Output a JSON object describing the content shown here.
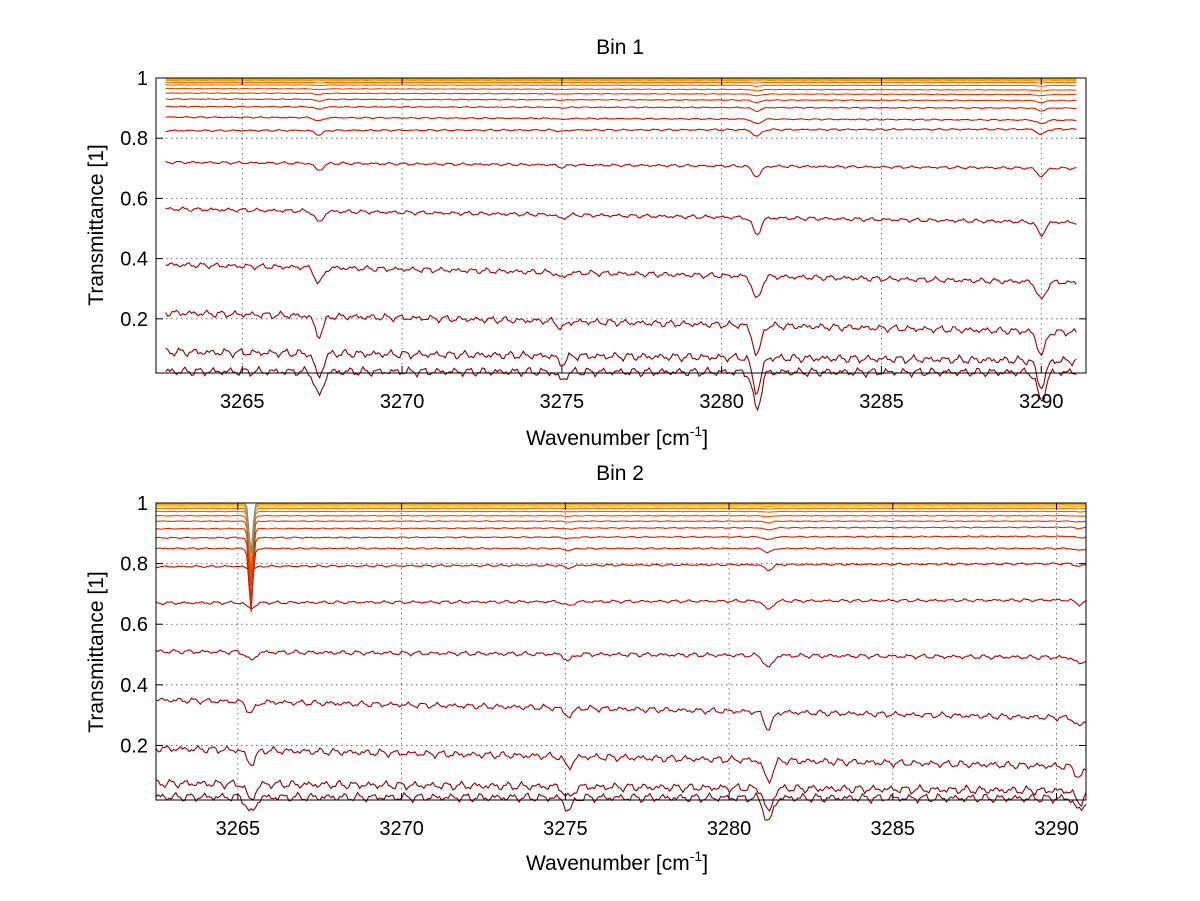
{
  "chart_data": [
    {
      "type": "line",
      "title": "Bin 1",
      "xlabel": "Wavenumber [cm",
      "xlabel_sup": "-1",
      "xlabel_tail": "]",
      "ylabel": "Transmittance [1]",
      "xlim": [
        3262.3,
        3291.4
      ],
      "ylim": [
        0.02,
        1.0
      ],
      "x_range": [
        3262.6,
        3291.1
      ],
      "xticks": [
        3265,
        3270,
        3275,
        3280,
        3285,
        3290
      ],
      "yticks": [
        0.2,
        0.4,
        0.6,
        0.8,
        1
      ],
      "grid": true,
      "dips": [
        {
          "x": 3267.4,
          "depth": 0.06
        },
        {
          "x": 3281.1,
          "depth": 0.09
        },
        {
          "x": 3290.0,
          "depth": 0.07
        },
        {
          "x": 3275.0,
          "depth": 0.02
        }
      ],
      "series": [
        {
          "start": 0.025,
          "end": 0.022,
          "color": "#8b0000"
        },
        {
          "start": 0.09,
          "end": 0.06,
          "color": "#8b0000"
        },
        {
          "start": 0.22,
          "end": 0.155,
          "color": "#a00000"
        },
        {
          "start": 0.38,
          "end": 0.32,
          "color": "#a80000"
        },
        {
          "start": 0.565,
          "end": 0.52,
          "color": "#b00000"
        },
        {
          "start": 0.72,
          "end": 0.7,
          "color": "#b80800"
        },
        {
          "start": 0.825,
          "end": 0.83,
          "color": "#c01000"
        },
        {
          "start": 0.87,
          "end": 0.86,
          "color": "#c81800"
        },
        {
          "start": 0.905,
          "end": 0.9,
          "color": "#d02000"
        },
        {
          "start": 0.93,
          "end": 0.925,
          "color": "#d83000"
        },
        {
          "start": 0.95,
          "end": 0.945,
          "color": "#e04000"
        },
        {
          "start": 0.965,
          "end": 0.96,
          "color": "#e85000"
        },
        {
          "start": 0.977,
          "end": 0.975,
          "color": "#f06000"
        },
        {
          "start": 0.985,
          "end": 0.985,
          "color": "#f07800"
        },
        {
          "start": 0.991,
          "end": 0.991,
          "color": "#f09000"
        },
        {
          "start": 0.995,
          "end": 0.995,
          "color": "#f0a800"
        },
        {
          "start": 0.998,
          "end": 0.998,
          "color": "#e0c000"
        },
        {
          "start": 1.0,
          "end": 1.0,
          "color": "#30a0c0"
        }
      ]
    },
    {
      "type": "line",
      "title": "Bin 2",
      "xlabel": "Wavenumber [cm",
      "xlabel_sup": "-1",
      "xlabel_tail": "]",
      "ylabel": "Transmittance [1]",
      "xlim": [
        3262.5,
        3290.9
      ],
      "ylim": [
        0.02,
        1.0
      ],
      "x_range": [
        3262.5,
        3290.9
      ],
      "xticks": [
        3265,
        3270,
        3275,
        3280,
        3285,
        3290
      ],
      "yticks": [
        0.2,
        0.4,
        0.6,
        0.8,
        1
      ],
      "grid": true,
      "dips": [
        {
          "x": 3265.4,
          "depth": 0.04
        },
        {
          "x": 3275.1,
          "depth": 0.03
        },
        {
          "x": 3281.2,
          "depth": 0.06
        },
        {
          "x": 3290.7,
          "depth": 0.03
        }
      ],
      "spike": {
        "x": 3265.4,
        "min": 0.76
      },
      "series": [
        {
          "start": 0.03,
          "end": 0.025,
          "color": "#8b0000"
        },
        {
          "start": 0.075,
          "end": 0.05,
          "color": "#8b0000"
        },
        {
          "start": 0.19,
          "end": 0.13,
          "color": "#a00000"
        },
        {
          "start": 0.35,
          "end": 0.29,
          "color": "#a80000"
        },
        {
          "start": 0.51,
          "end": 0.49,
          "color": "#b00000"
        },
        {
          "start": 0.67,
          "end": 0.68,
          "color": "#b80800"
        },
        {
          "start": 0.79,
          "end": 0.8,
          "color": "#c01000"
        },
        {
          "start": 0.85,
          "end": 0.85,
          "color": "#c81800"
        },
        {
          "start": 0.885,
          "end": 0.89,
          "color": "#d02000"
        },
        {
          "start": 0.915,
          "end": 0.92,
          "color": "#d83000"
        },
        {
          "start": 0.94,
          "end": 0.94,
          "color": "#e04000"
        },
        {
          "start": 0.958,
          "end": 0.958,
          "color": "#e85000"
        },
        {
          "start": 0.972,
          "end": 0.972,
          "color": "#f06000"
        },
        {
          "start": 0.982,
          "end": 0.982,
          "color": "#f07800"
        },
        {
          "start": 0.99,
          "end": 0.99,
          "color": "#f09000"
        },
        {
          "start": 0.995,
          "end": 0.995,
          "color": "#f0a800"
        },
        {
          "start": 0.998,
          "end": 0.998,
          "color": "#e0c000"
        },
        {
          "start": 1.0,
          "end": 1.0,
          "color": "#30a0c0"
        }
      ]
    }
  ]
}
